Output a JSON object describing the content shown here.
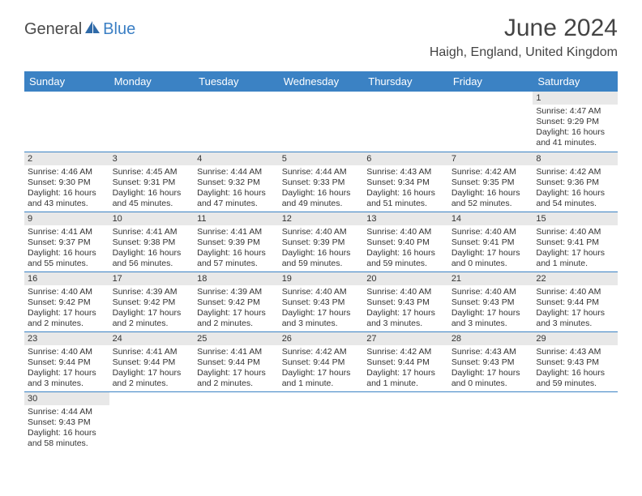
{
  "logo": {
    "part1": "General",
    "part2": "Blue"
  },
  "title": "June 2024",
  "location": "Haigh, England, United Kingdom",
  "colors": {
    "header_bg": "#3b82c4",
    "header_fg": "#ffffff",
    "daynum_bg": "#e8e8e8",
    "row_divider": "#3b82c4",
    "logo_gray": "#4a4a4a",
    "logo_blue": "#3b7fc4"
  },
  "weekdays": [
    "Sunday",
    "Monday",
    "Tuesday",
    "Wednesday",
    "Thursday",
    "Friday",
    "Saturday"
  ],
  "weeks": [
    [
      null,
      null,
      null,
      null,
      null,
      null,
      {
        "n": "1",
        "sunrise": "Sunrise: 4:47 AM",
        "sunset": "Sunset: 9:29 PM",
        "daylight": "Daylight: 16 hours and 41 minutes."
      }
    ],
    [
      {
        "n": "2",
        "sunrise": "Sunrise: 4:46 AM",
        "sunset": "Sunset: 9:30 PM",
        "daylight": "Daylight: 16 hours and 43 minutes."
      },
      {
        "n": "3",
        "sunrise": "Sunrise: 4:45 AM",
        "sunset": "Sunset: 9:31 PM",
        "daylight": "Daylight: 16 hours and 45 minutes."
      },
      {
        "n": "4",
        "sunrise": "Sunrise: 4:44 AM",
        "sunset": "Sunset: 9:32 PM",
        "daylight": "Daylight: 16 hours and 47 minutes."
      },
      {
        "n": "5",
        "sunrise": "Sunrise: 4:44 AM",
        "sunset": "Sunset: 9:33 PM",
        "daylight": "Daylight: 16 hours and 49 minutes."
      },
      {
        "n": "6",
        "sunrise": "Sunrise: 4:43 AM",
        "sunset": "Sunset: 9:34 PM",
        "daylight": "Daylight: 16 hours and 51 minutes."
      },
      {
        "n": "7",
        "sunrise": "Sunrise: 4:42 AM",
        "sunset": "Sunset: 9:35 PM",
        "daylight": "Daylight: 16 hours and 52 minutes."
      },
      {
        "n": "8",
        "sunrise": "Sunrise: 4:42 AM",
        "sunset": "Sunset: 9:36 PM",
        "daylight": "Daylight: 16 hours and 54 minutes."
      }
    ],
    [
      {
        "n": "9",
        "sunrise": "Sunrise: 4:41 AM",
        "sunset": "Sunset: 9:37 PM",
        "daylight": "Daylight: 16 hours and 55 minutes."
      },
      {
        "n": "10",
        "sunrise": "Sunrise: 4:41 AM",
        "sunset": "Sunset: 9:38 PM",
        "daylight": "Daylight: 16 hours and 56 minutes."
      },
      {
        "n": "11",
        "sunrise": "Sunrise: 4:41 AM",
        "sunset": "Sunset: 9:39 PM",
        "daylight": "Daylight: 16 hours and 57 minutes."
      },
      {
        "n": "12",
        "sunrise": "Sunrise: 4:40 AM",
        "sunset": "Sunset: 9:39 PM",
        "daylight": "Daylight: 16 hours and 59 minutes."
      },
      {
        "n": "13",
        "sunrise": "Sunrise: 4:40 AM",
        "sunset": "Sunset: 9:40 PM",
        "daylight": "Daylight: 16 hours and 59 minutes."
      },
      {
        "n": "14",
        "sunrise": "Sunrise: 4:40 AM",
        "sunset": "Sunset: 9:41 PM",
        "daylight": "Daylight: 17 hours and 0 minutes."
      },
      {
        "n": "15",
        "sunrise": "Sunrise: 4:40 AM",
        "sunset": "Sunset: 9:41 PM",
        "daylight": "Daylight: 17 hours and 1 minute."
      }
    ],
    [
      {
        "n": "16",
        "sunrise": "Sunrise: 4:40 AM",
        "sunset": "Sunset: 9:42 PM",
        "daylight": "Daylight: 17 hours and 2 minutes."
      },
      {
        "n": "17",
        "sunrise": "Sunrise: 4:39 AM",
        "sunset": "Sunset: 9:42 PM",
        "daylight": "Daylight: 17 hours and 2 minutes."
      },
      {
        "n": "18",
        "sunrise": "Sunrise: 4:39 AM",
        "sunset": "Sunset: 9:42 PM",
        "daylight": "Daylight: 17 hours and 2 minutes."
      },
      {
        "n": "19",
        "sunrise": "Sunrise: 4:40 AM",
        "sunset": "Sunset: 9:43 PM",
        "daylight": "Daylight: 17 hours and 3 minutes."
      },
      {
        "n": "20",
        "sunrise": "Sunrise: 4:40 AM",
        "sunset": "Sunset: 9:43 PM",
        "daylight": "Daylight: 17 hours and 3 minutes."
      },
      {
        "n": "21",
        "sunrise": "Sunrise: 4:40 AM",
        "sunset": "Sunset: 9:43 PM",
        "daylight": "Daylight: 17 hours and 3 minutes."
      },
      {
        "n": "22",
        "sunrise": "Sunrise: 4:40 AM",
        "sunset": "Sunset: 9:44 PM",
        "daylight": "Daylight: 17 hours and 3 minutes."
      }
    ],
    [
      {
        "n": "23",
        "sunrise": "Sunrise: 4:40 AM",
        "sunset": "Sunset: 9:44 PM",
        "daylight": "Daylight: 17 hours and 3 minutes."
      },
      {
        "n": "24",
        "sunrise": "Sunrise: 4:41 AM",
        "sunset": "Sunset: 9:44 PM",
        "daylight": "Daylight: 17 hours and 2 minutes."
      },
      {
        "n": "25",
        "sunrise": "Sunrise: 4:41 AM",
        "sunset": "Sunset: 9:44 PM",
        "daylight": "Daylight: 17 hours and 2 minutes."
      },
      {
        "n": "26",
        "sunrise": "Sunrise: 4:42 AM",
        "sunset": "Sunset: 9:44 PM",
        "daylight": "Daylight: 17 hours and 1 minute."
      },
      {
        "n": "27",
        "sunrise": "Sunrise: 4:42 AM",
        "sunset": "Sunset: 9:44 PM",
        "daylight": "Daylight: 17 hours and 1 minute."
      },
      {
        "n": "28",
        "sunrise": "Sunrise: 4:43 AM",
        "sunset": "Sunset: 9:43 PM",
        "daylight": "Daylight: 17 hours and 0 minutes."
      },
      {
        "n": "29",
        "sunrise": "Sunrise: 4:43 AM",
        "sunset": "Sunset: 9:43 PM",
        "daylight": "Daylight: 16 hours and 59 minutes."
      }
    ],
    [
      {
        "n": "30",
        "sunrise": "Sunrise: 4:44 AM",
        "sunset": "Sunset: 9:43 PM",
        "daylight": "Daylight: 16 hours and 58 minutes."
      },
      null,
      null,
      null,
      null,
      null,
      null
    ]
  ]
}
